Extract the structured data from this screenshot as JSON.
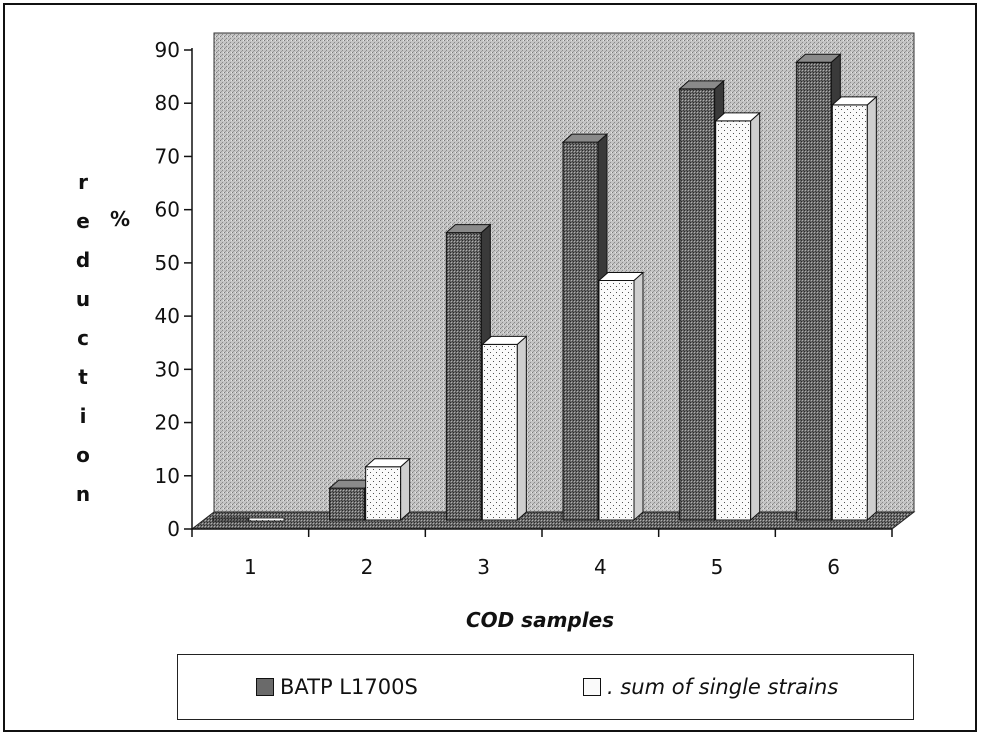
{
  "chart_data": {
    "type": "bar",
    "title": "",
    "xlabel": "COD samples",
    "ylabel_letters": [
      "r",
      "e",
      "d",
      "u",
      "c",
      "t",
      "i",
      "o",
      "n"
    ],
    "ylabel_unit": "%",
    "ylim": [
      0,
      90
    ],
    "yticks": [
      "0",
      "10",
      "20",
      "30",
      "40",
      "50",
      "60",
      "70",
      "80",
      "90"
    ],
    "categories": [
      "1",
      "2",
      "3",
      "4",
      "5",
      "6"
    ],
    "series": [
      {
        "name": "BATP L1700S",
        "values": [
          0,
          6,
          54,
          71,
          81,
          86
        ],
        "color": "#5a5a5a"
      },
      {
        "name": ". sum of single strains",
        "values": [
          0,
          10,
          33,
          45,
          75,
          78
        ],
        "color": "#f4f4f4"
      }
    ],
    "legend_position": "bottom",
    "grid": false
  }
}
